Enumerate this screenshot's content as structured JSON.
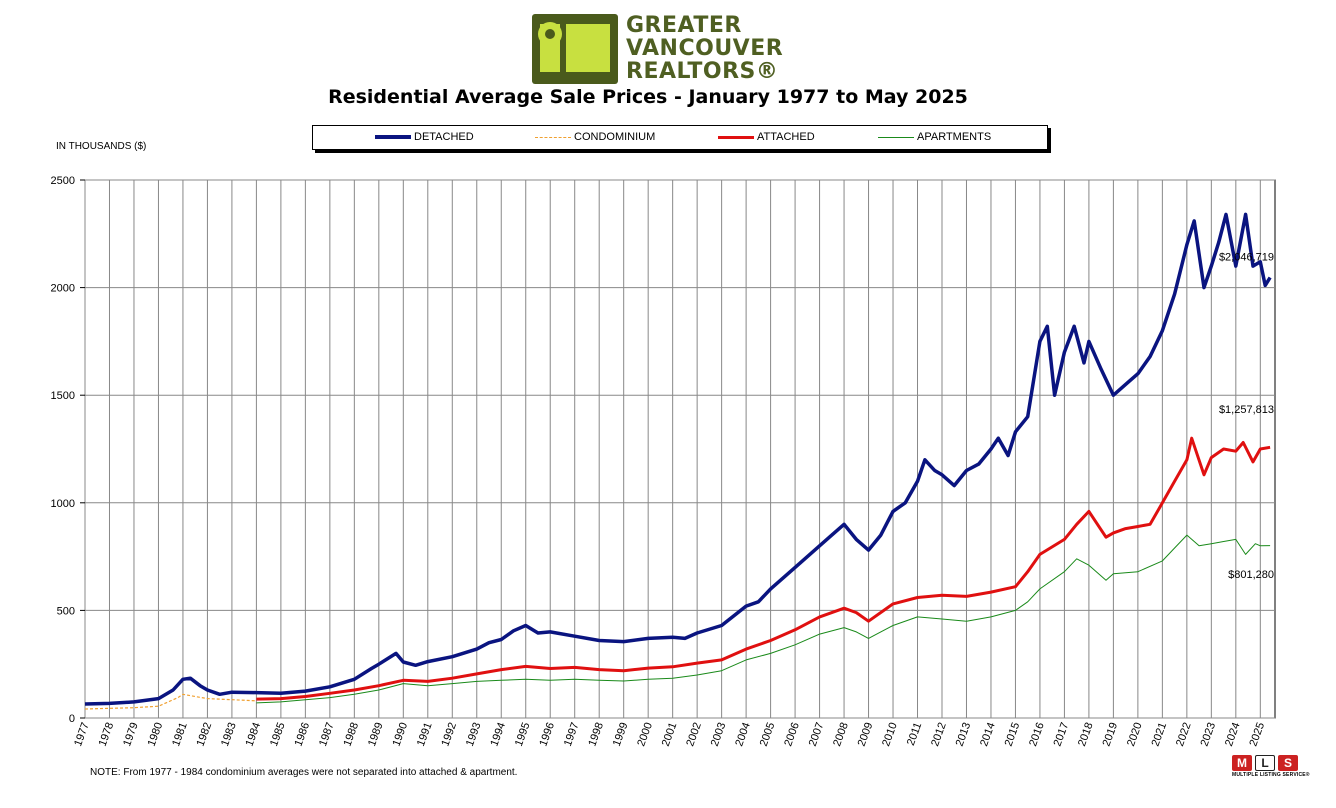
{
  "header": {
    "logo_lines": [
      "GREATER",
      "VANCOUVER",
      "REALTORS®"
    ],
    "title": "Residential Average Sale Prices  -  January 1977 to May 2025"
  },
  "footer": {
    "note": "NOTE:  From 1977 - 1984 condominium averages were not separated into attached & apartment.",
    "mls_caption": "MULTIPLE LISTING SERVICE®"
  },
  "icons": {
    "logo": "realtors-logo-icon",
    "mls": "mls-logo-icon"
  },
  "chart_data": {
    "type": "line",
    "ylabel": "IN THOUSANDS ($)",
    "ylim": [
      0,
      2500
    ],
    "yticks": [
      0,
      500,
      1000,
      1500,
      2000,
      2500
    ],
    "xlim": [
      1977,
      2025.6
    ],
    "xticks": [
      "1977",
      "1978",
      "1979",
      "1980",
      "1981",
      "1982",
      "1983",
      "1984",
      "1985",
      "1986",
      "1987",
      "1988",
      "1989",
      "1990",
      "1991",
      "1992",
      "1993",
      "1994",
      "1995",
      "1996",
      "1997",
      "1998",
      "1999",
      "2000",
      "2001",
      "2002",
      "2003",
      "2004",
      "2005",
      "2006",
      "2007",
      "2008",
      "2009",
      "2010",
      "2011",
      "2012",
      "2013",
      "2014",
      "2015",
      "2016",
      "2017",
      "2018",
      "2019",
      "2020",
      "2021",
      "2022",
      "2023",
      "2024",
      "2025"
    ],
    "grid": true,
    "legend_position": "top-center",
    "annotations": [
      {
        "text": "$2,046,719",
        "series": "DETACHED"
      },
      {
        "text": "$1,257,813",
        "series": "ATTACHED"
      },
      {
        "text": "$801,280",
        "series": "APARTMENTS"
      }
    ],
    "series": [
      {
        "name": "DETACHED",
        "color": "#0a1480",
        "style": "solid-thick",
        "points": [
          [
            1977,
            65
          ],
          [
            1978,
            68
          ],
          [
            1979,
            75
          ],
          [
            1980,
            90
          ],
          [
            1980.6,
            130
          ],
          [
            1981,
            180
          ],
          [
            1981.3,
            185
          ],
          [
            1981.7,
            150
          ],
          [
            1982,
            130
          ],
          [
            1982.5,
            110
          ],
          [
            1983,
            120
          ],
          [
            1984,
            118
          ],
          [
            1985,
            115
          ],
          [
            1986,
            125
          ],
          [
            1987,
            145
          ],
          [
            1988,
            180
          ],
          [
            1988.7,
            230
          ],
          [
            1989,
            250
          ],
          [
            1989.7,
            300
          ],
          [
            1990,
            260
          ],
          [
            1990.5,
            245
          ],
          [
            1991,
            262
          ],
          [
            1992,
            285
          ],
          [
            1993,
            320
          ],
          [
            1993.5,
            350
          ],
          [
            1994,
            365
          ],
          [
            1994.5,
            405
          ],
          [
            1995,
            430
          ],
          [
            1995.5,
            395
          ],
          [
            1996,
            400
          ],
          [
            1997,
            380
          ],
          [
            1998,
            360
          ],
          [
            1999,
            355
          ],
          [
            2000,
            370
          ],
          [
            2001,
            375
          ],
          [
            2001.5,
            370
          ],
          [
            2002,
            395
          ],
          [
            2003,
            430
          ],
          [
            2004,
            520
          ],
          [
            2004.5,
            540
          ],
          [
            2005,
            600
          ],
          [
            2006,
            700
          ],
          [
            2007,
            800
          ],
          [
            2007.5,
            850
          ],
          [
            2008,
            900
          ],
          [
            2008.5,
            830
          ],
          [
            2009,
            780
          ],
          [
            2009.5,
            850
          ],
          [
            2010,
            960
          ],
          [
            2010.5,
            1000
          ],
          [
            2011,
            1100
          ],
          [
            2011.3,
            1200
          ],
          [
            2011.7,
            1150
          ],
          [
            2012,
            1130
          ],
          [
            2012.5,
            1080
          ],
          [
            2013,
            1150
          ],
          [
            2013.5,
            1180
          ],
          [
            2014,
            1250
          ],
          [
            2014.3,
            1300
          ],
          [
            2014.7,
            1220
          ],
          [
            2015,
            1330
          ],
          [
            2015.5,
            1400
          ],
          [
            2016,
            1750
          ],
          [
            2016.3,
            1820
          ],
          [
            2016.6,
            1500
          ],
          [
            2017,
            1700
          ],
          [
            2017.4,
            1820
          ],
          [
            2017.8,
            1650
          ],
          [
            2018,
            1750
          ],
          [
            2018.5,
            1620
          ],
          [
            2019,
            1500
          ],
          [
            2019.5,
            1550
          ],
          [
            2020,
            1600
          ],
          [
            2020.5,
            1680
          ],
          [
            2021,
            1800
          ],
          [
            2021.5,
            1970
          ],
          [
            2022,
            2200
          ],
          [
            2022.3,
            2310
          ],
          [
            2022.7,
            2000
          ],
          [
            2023,
            2100
          ],
          [
            2023.3,
            2210
          ],
          [
            2023.6,
            2340
          ],
          [
            2024,
            2100
          ],
          [
            2024.4,
            2340
          ],
          [
            2024.7,
            2100
          ],
          [
            2025,
            2120
          ],
          [
            2025.2,
            2010
          ],
          [
            2025.4,
            2046.719
          ]
        ]
      },
      {
        "name": "CONDOMINIUM",
        "color": "#f0a030",
        "style": "dashed",
        "points": [
          [
            1977,
            42
          ],
          [
            1978,
            45
          ],
          [
            1979,
            48
          ],
          [
            1980,
            55
          ],
          [
            1980.8,
            95
          ],
          [
            1981,
            110
          ],
          [
            1981.5,
            100
          ],
          [
            1982,
            90
          ],
          [
            1983,
            85
          ],
          [
            1984,
            80
          ]
        ]
      },
      {
        "name": "ATTACHED",
        "color": "#e01010",
        "style": "solid-thick",
        "points": [
          [
            1984,
            88
          ],
          [
            1985,
            90
          ],
          [
            1986,
            100
          ],
          [
            1987,
            115
          ],
          [
            1988,
            130
          ],
          [
            1989,
            150
          ],
          [
            1990,
            175
          ],
          [
            1991,
            170
          ],
          [
            1992,
            185
          ],
          [
            1993,
            205
          ],
          [
            1994,
            225
          ],
          [
            1995,
            240
          ],
          [
            1996,
            230
          ],
          [
            1997,
            235
          ],
          [
            1998,
            225
          ],
          [
            1999,
            220
          ],
          [
            2000,
            232
          ],
          [
            2001,
            238
          ],
          [
            2002,
            255
          ],
          [
            2003,
            270
          ],
          [
            2004,
            320
          ],
          [
            2005,
            360
          ],
          [
            2006,
            410
          ],
          [
            2007,
            470
          ],
          [
            2008,
            510
          ],
          [
            2008.5,
            490
          ],
          [
            2009,
            450
          ],
          [
            2010,
            530
          ],
          [
            2011,
            560
          ],
          [
            2012,
            570
          ],
          [
            2013,
            565
          ],
          [
            2014,
            585
          ],
          [
            2015,
            610
          ],
          [
            2015.5,
            680
          ],
          [
            2016,
            760
          ],
          [
            2017,
            830
          ],
          [
            2017.5,
            900
          ],
          [
            2018,
            960
          ],
          [
            2018.7,
            840
          ],
          [
            2019,
            860
          ],
          [
            2019.5,
            880
          ],
          [
            2020,
            890
          ],
          [
            2020.5,
            900
          ],
          [
            2021,
            1000
          ],
          [
            2021.5,
            1100
          ],
          [
            2022,
            1200
          ],
          [
            2022.2,
            1300
          ],
          [
            2022.7,
            1130
          ],
          [
            2023,
            1210
          ],
          [
            2023.5,
            1250
          ],
          [
            2024,
            1240
          ],
          [
            2024.3,
            1280
          ],
          [
            2024.7,
            1190
          ],
          [
            2025,
            1250
          ],
          [
            2025.4,
            1257.813
          ]
        ]
      },
      {
        "name": "APARTMENTS",
        "color": "#1a8a1a",
        "style": "solid-thin",
        "points": [
          [
            1984,
            70
          ],
          [
            1985,
            75
          ],
          [
            1986,
            85
          ],
          [
            1987,
            95
          ],
          [
            1988,
            110
          ],
          [
            1989,
            130
          ],
          [
            1990,
            160
          ],
          [
            1991,
            150
          ],
          [
            1992,
            160
          ],
          [
            1993,
            170
          ],
          [
            1994,
            175
          ],
          [
            1995,
            180
          ],
          [
            1996,
            175
          ],
          [
            1997,
            180
          ],
          [
            1998,
            175
          ],
          [
            1999,
            172
          ],
          [
            2000,
            180
          ],
          [
            2001,
            185
          ],
          [
            2002,
            200
          ],
          [
            2003,
            220
          ],
          [
            2004,
            270
          ],
          [
            2005,
            300
          ],
          [
            2006,
            340
          ],
          [
            2007,
            390
          ],
          [
            2008,
            420
          ],
          [
            2008.5,
            400
          ],
          [
            2009,
            370
          ],
          [
            2010,
            430
          ],
          [
            2011,
            470
          ],
          [
            2012,
            460
          ],
          [
            2013,
            450
          ],
          [
            2014,
            470
          ],
          [
            2015,
            500
          ],
          [
            2015.5,
            540
          ],
          [
            2016,
            600
          ],
          [
            2017,
            680
          ],
          [
            2017.5,
            740
          ],
          [
            2018,
            710
          ],
          [
            2018.7,
            640
          ],
          [
            2019,
            670
          ],
          [
            2020,
            680
          ],
          [
            2021,
            730
          ],
          [
            2021.5,
            790
          ],
          [
            2022,
            850
          ],
          [
            2022.5,
            800
          ],
          [
            2023,
            810
          ],
          [
            2023.5,
            820
          ],
          [
            2024,
            830
          ],
          [
            2024.4,
            760
          ],
          [
            2024.8,
            810
          ],
          [
            2025,
            800
          ],
          [
            2025.4,
            801.28
          ]
        ]
      }
    ]
  }
}
